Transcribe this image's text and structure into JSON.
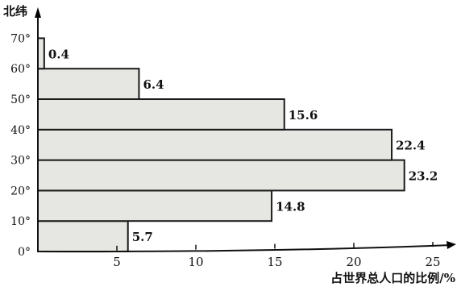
{
  "chart_data": {
    "type": "bar",
    "orientation": "horizontal",
    "ylabel": "北纬",
    "xlabel": "占世界总人口的比例/%",
    "y_ticks": [
      "0°",
      "10°",
      "20°",
      "30°",
      "40°",
      "50°",
      "60°",
      "70°"
    ],
    "x_ticks": [
      "5",
      "10",
      "15",
      "20",
      "25"
    ],
    "xlim": [
      0,
      27
    ],
    "ylim": [
      0,
      75
    ],
    "bars": [
      {
        "lat_from": 0,
        "lat_to": 10,
        "value": 5.7,
        "label": "5.7"
      },
      {
        "lat_from": 10,
        "lat_to": 20,
        "value": 14.8,
        "label": "14.8"
      },
      {
        "lat_from": 20,
        "lat_to": 30,
        "value": 23.2,
        "label": "23.2"
      },
      {
        "lat_from": 30,
        "lat_to": 40,
        "value": 22.4,
        "label": "22.4"
      },
      {
        "lat_from": 40,
        "lat_to": 50,
        "value": 15.6,
        "label": "15.6"
      },
      {
        "lat_from": 50,
        "lat_to": 60,
        "value": 6.4,
        "label": "6.4"
      },
      {
        "lat_from": 60,
        "lat_to": 70,
        "value": 0.4,
        "label": "0.4"
      }
    ],
    "grid": false,
    "colors": {
      "bar_fill": "#e6e6e2",
      "bar_stroke": "#1a1a1a",
      "axis": "#111111"
    }
  }
}
